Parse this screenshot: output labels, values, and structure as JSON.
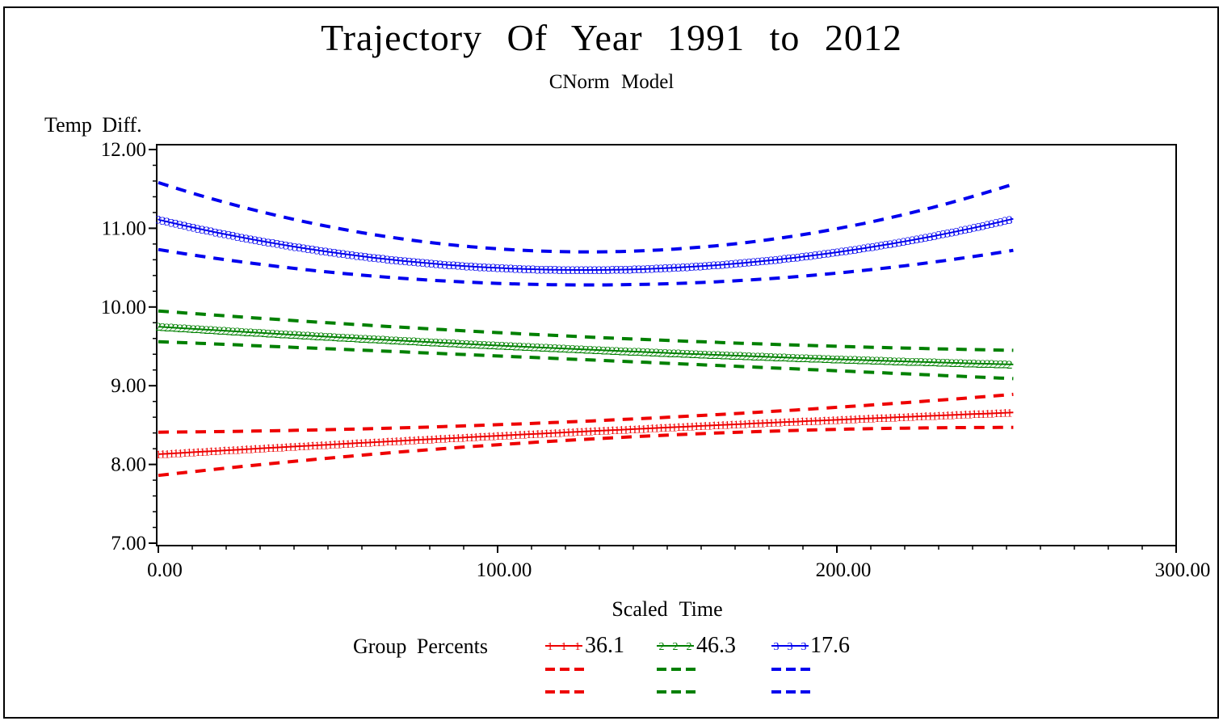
{
  "title": "Trajectory Of Year 1991 to 2012",
  "subtitle": "CNorm Model",
  "colors": {
    "foreground": "#000000",
    "background": "#ffffff",
    "group1": "#ee0000",
    "group2": "#008000",
    "group3": "#0000ee"
  },
  "chart_data": {
    "type": "line",
    "title": "Trajectory Of Year 1991 to 2012",
    "subtitle": "CNorm Model",
    "xlabel": "Scaled Time",
    "ylabel": "Temp Diff.",
    "xlim": [
      0,
      300
    ],
    "ylim": [
      7,
      12
    ],
    "x_major_ticks": [
      0,
      100,
      200,
      300
    ],
    "x_tick_labels": [
      "0.00",
      "100.00",
      "200.00",
      "300.00"
    ],
    "x_minor_step": 10,
    "y_major_ticks": [
      12,
      11,
      10,
      9,
      8,
      7
    ],
    "y_tick_labels": [
      "12.00",
      "11.00",
      "10.00",
      "9.00",
      "8.00",
      "7.00"
    ],
    "y_minor_step": 0.2,
    "grid": false,
    "legend_position": "bottom",
    "legend": {
      "title": "Group Percents",
      "entries": [
        {
          "group": "1",
          "percent": "36.1",
          "color": "#ee0000"
        },
        {
          "group": "2",
          "percent": "46.3",
          "color": "#008000"
        },
        {
          "group": "3",
          "percent": "17.6",
          "color": "#0000ee"
        }
      ]
    },
    "t_samples": [
      0,
      126,
      252
    ],
    "marker_step": 1.3,
    "series": [
      {
        "name": "group-1-trajectory",
        "marker_glyph": "1",
        "group_percent": "36.1",
        "color": "#ee0000",
        "center": [
          8.13,
          8.42,
          8.66
        ],
        "upper_ci": [
          8.41,
          8.55,
          8.89
        ],
        "lower_ci": [
          7.86,
          8.32,
          8.47
        ]
      },
      {
        "name": "group-2-trajectory",
        "marker_glyph": "2",
        "group_percent": "46.3",
        "color": "#008000",
        "center": [
          9.75,
          9.46,
          9.27
        ],
        "upper_ci": [
          9.95,
          9.62,
          9.45
        ],
        "lower_ci": [
          9.56,
          9.33,
          9.09
        ]
      },
      {
        "name": "group-3-trajectory",
        "marker_glyph": "3",
        "group_percent": "17.6",
        "color": "#0000ee",
        "center": [
          11.11,
          10.47,
          11.12
        ],
        "upper_ci": [
          11.58,
          10.7,
          11.56
        ],
        "lower_ci": [
          10.73,
          10.28,
          10.72
        ]
      }
    ]
  }
}
